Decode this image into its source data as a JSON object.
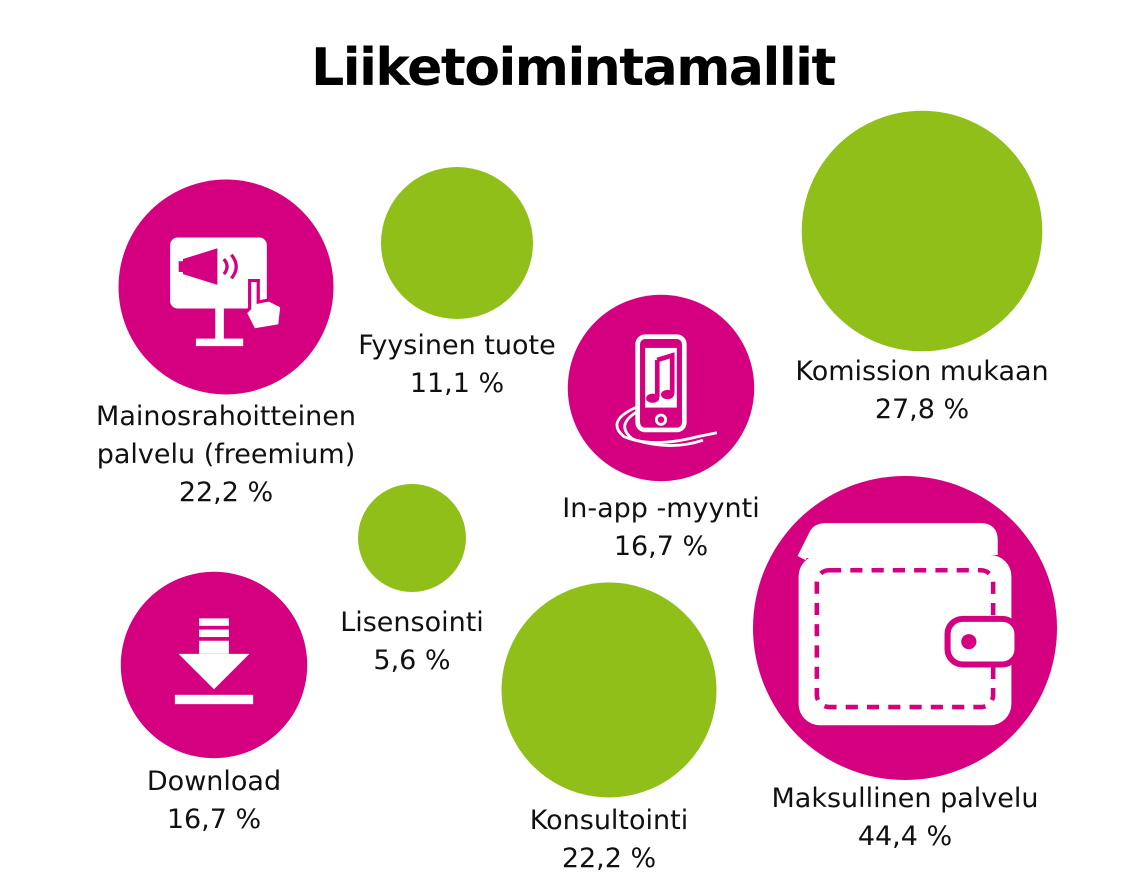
{
  "chart_data": {
    "type": "bubble",
    "title": "Liiketoimintamallit",
    "unit": "%",
    "colors": {
      "icon_bubble": "#d5007f",
      "plain_bubble": "#8fbf18"
    },
    "items": [
      {
        "name_lines": [
          "Mainosrahoitteinen",
          "palvelu (freemium)"
        ],
        "value": 22.2,
        "value_label": "22,2 %",
        "icon": "billboard-megaphone-touch-icon"
      },
      {
        "name_lines": [
          "Fyysinen tuote"
        ],
        "value": 11.1,
        "value_label": "11,1 %",
        "icon": ""
      },
      {
        "name_lines": [
          "In-app -myynti"
        ],
        "value": 16.7,
        "value_label": "16,7 %",
        "icon": "smartphone-music-icon"
      },
      {
        "name_lines": [
          "Komission mukaan"
        ],
        "value": 27.8,
        "value_label": "27,8 %",
        "icon": ""
      },
      {
        "name_lines": [
          "Lisensointi"
        ],
        "value": 5.6,
        "value_label": "5,6 %",
        "icon": ""
      },
      {
        "name_lines": [
          "Download"
        ],
        "value": 16.7,
        "value_label": "16,7 %",
        "icon": "download-icon"
      },
      {
        "name_lines": [
          "Konsultointi"
        ],
        "value": 22.2,
        "value_label": "22,2 %",
        "icon": ""
      },
      {
        "name_lines": [
          "Maksullinen palvelu"
        ],
        "value": 44.4,
        "value_label": "44,4 %",
        "icon": "wallet-icon"
      }
    ]
  }
}
